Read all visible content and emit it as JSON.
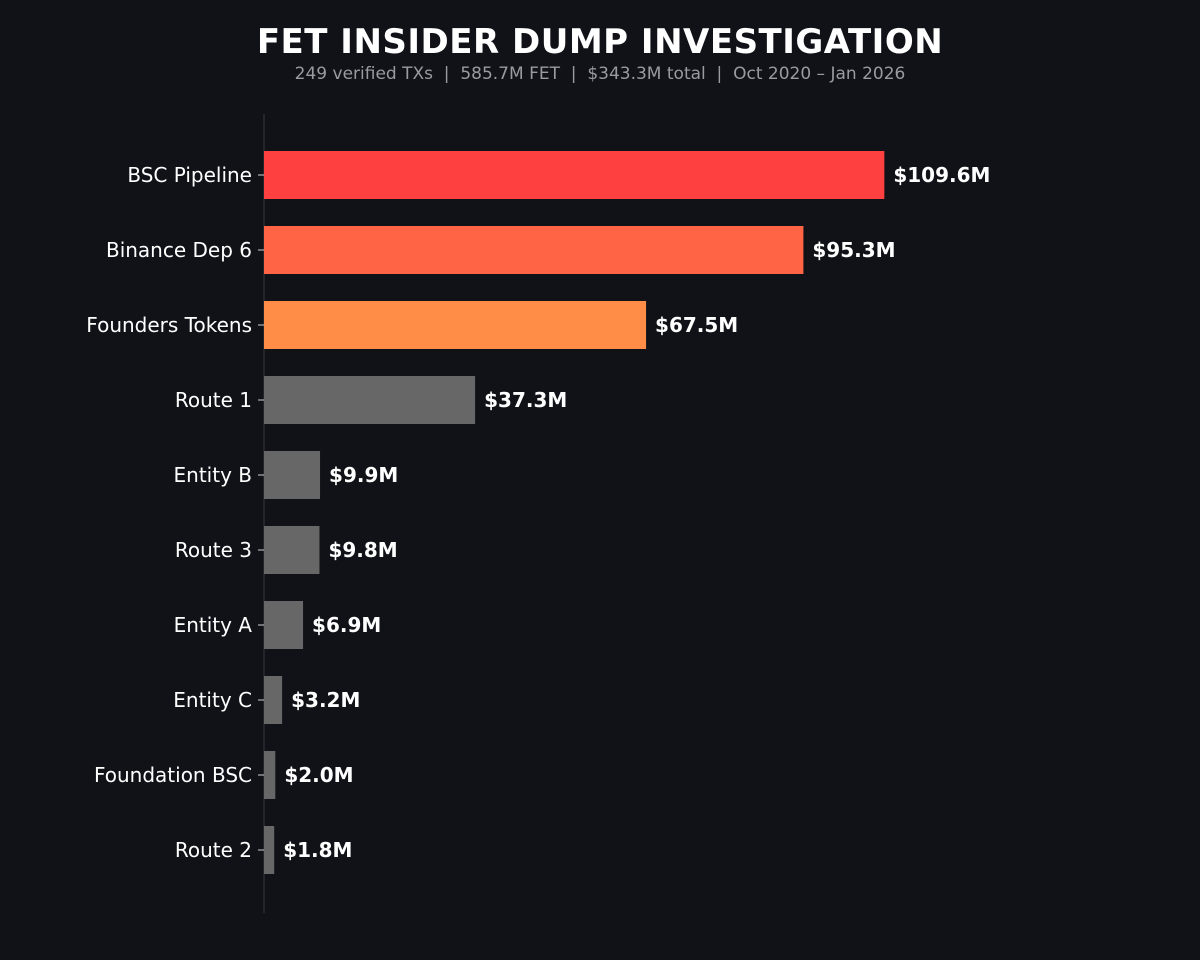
{
  "chart_data": {
    "type": "bar",
    "orientation": "horizontal",
    "title": "FET INSIDER DUMP INVESTIGATION",
    "subtitle": "249 verified TXs  |  585.7M FET  |  $343.3M total  |  Oct 2020 – Jan 2026",
    "categories": [
      "BSC Pipeline",
      "Binance Dep 6",
      "Founders Tokens",
      "Route 1",
      "Entity B",
      "Route 3",
      "Entity A",
      "Entity C",
      "Foundation BSC",
      "Route 2"
    ],
    "values": [
      109.6,
      95.3,
      67.5,
      37.3,
      9.9,
      9.8,
      6.9,
      3.2,
      2.0,
      1.8
    ],
    "value_labels": [
      "$109.6M",
      "$95.3M",
      "$67.5M",
      "$37.3M",
      "$9.9M",
      "$9.8M",
      "$6.9M",
      "$3.2M",
      "$2.0M",
      "$1.8M"
    ],
    "colors": [
      "#ff4040",
      "#ff6544",
      "#ff8c47",
      "#676767",
      "#676767",
      "#676767",
      "#676767",
      "#676767",
      "#676767",
      "#676767"
    ],
    "xlim": [
      0,
      150
    ],
    "grid": false,
    "legend": "none",
    "xlabel": "",
    "ylabel": "",
    "background": "#111218",
    "axis_color": "#2a2b31"
  }
}
